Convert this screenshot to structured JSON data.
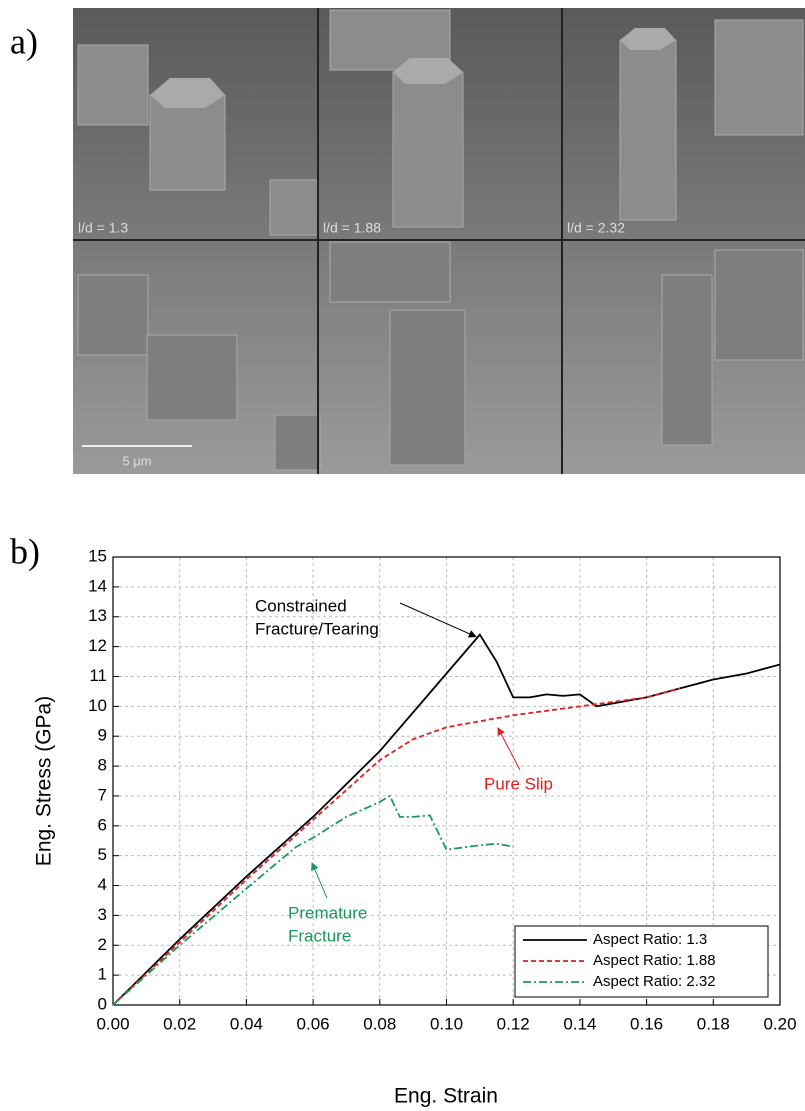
{
  "panel_a": {
    "label": "a)",
    "image_labels": [
      "l/d = 1.3",
      "l/d = 1.88",
      "l/d = 2.32"
    ],
    "scale_bar": "5 μm"
  },
  "chart_data": {
    "type": "line",
    "panel_label": "b)",
    "x_label": "Eng. Strain",
    "y_label": "Eng. Stress (GPa)",
    "xlim": [
      0,
      0.2
    ],
    "ylim": [
      0,
      15
    ],
    "xticks": [
      {
        "value": 0,
        "label": "0.00"
      },
      {
        "value": 0.02,
        "label": "0.02"
      },
      {
        "value": 0.04,
        "label": "0.04"
      },
      {
        "value": 0.06,
        "label": "0.06"
      },
      {
        "value": 0.08,
        "label": "0.08"
      },
      {
        "value": 0.1,
        "label": "0.10"
      },
      {
        "value": 0.12,
        "label": "0.12"
      },
      {
        "value": 0.14,
        "label": "0.14"
      },
      {
        "value": 0.16,
        "label": "0.16"
      },
      {
        "value": 0.18,
        "label": "0.18"
      },
      {
        "value": 0.2,
        "label": "0.20"
      }
    ],
    "yticks": [
      0,
      1,
      2,
      3,
      4,
      5,
      6,
      7,
      8,
      9,
      10,
      11,
      12,
      13,
      14,
      15
    ],
    "grid": true,
    "legend": "lower right",
    "series": [
      {
        "name": "Aspect Ratio: 1.3",
        "color": "#000000",
        "style": "solid",
        "x": [
          0,
          0.02,
          0.04,
          0.06,
          0.08,
          0.1,
          0.11,
          0.115,
          0.12,
          0.125,
          0.13,
          0.135,
          0.14,
          0.145,
          0.15,
          0.16,
          0.17,
          0.18,
          0.19,
          0.2
        ],
        "values": [
          0,
          2.2,
          4.3,
          6.3,
          8.5,
          11.1,
          12.4,
          11.5,
          10.3,
          10.3,
          10.4,
          10.35,
          10.4,
          10.0,
          10.1,
          10.3,
          10.6,
          10.9,
          11.1,
          11.4
        ]
      },
      {
        "name": "Aspect Ratio: 1.88",
        "color": "#e02020",
        "style": "dashed",
        "x": [
          0,
          0.02,
          0.04,
          0.06,
          0.07,
          0.08,
          0.09,
          0.1,
          0.12,
          0.14,
          0.16,
          0.17
        ],
        "values": [
          0,
          2.1,
          4.2,
          6.2,
          7.2,
          8.2,
          8.9,
          9.3,
          9.7,
          10.0,
          10.3,
          10.6
        ]
      },
      {
        "name": "Aspect Ratio: 2.32",
        "color": "#1a9a5a",
        "style": "dashdot",
        "x": [
          0,
          0.02,
          0.04,
          0.055,
          0.06,
          0.07,
          0.08,
          0.083,
          0.086,
          0.09,
          0.095,
          0.1,
          0.11,
          0.115,
          0.12
        ],
        "values": [
          0,
          2.0,
          3.9,
          5.3,
          5.6,
          6.3,
          6.8,
          7.0,
          6.3,
          6.3,
          6.35,
          5.2,
          5.35,
          5.4,
          5.3
        ]
      }
    ],
    "annotations": [
      {
        "lines": [
          "Constrained",
          "Fracture/Tearing"
        ],
        "color": "#000000"
      },
      {
        "lines": [
          "Pure Slip"
        ],
        "color": "#e02020"
      },
      {
        "lines": [
          "Premature",
          "Fracture"
        ],
        "color": "#1a9a5a"
      }
    ]
  }
}
